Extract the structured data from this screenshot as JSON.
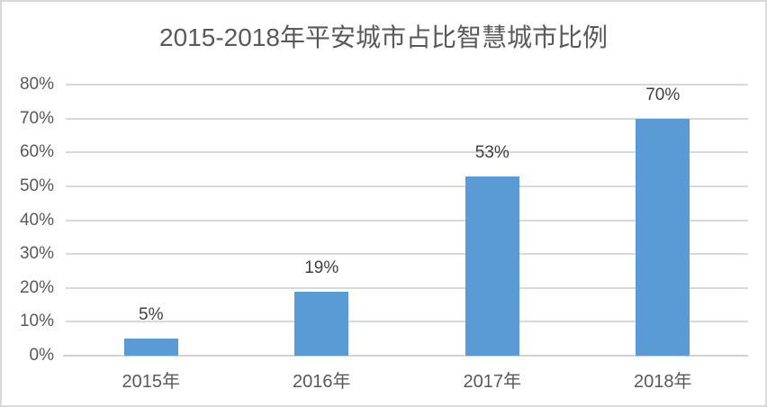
{
  "chart_data": {
    "type": "bar",
    "title": "2015-2018年平安城市占比智慧城市比例",
    "categories": [
      "2015年",
      "2016年",
      "2017年",
      "2018年"
    ],
    "values": [
      5,
      19,
      53,
      70
    ],
    "value_labels": [
      "5%",
      "19%",
      "53%",
      "70%"
    ],
    "xlabel": "",
    "ylabel": "",
    "ylim": [
      0,
      80
    ],
    "y_ticks": [
      0,
      10,
      20,
      30,
      40,
      50,
      60,
      70,
      80
    ],
    "y_tick_labels": [
      "0%",
      "10%",
      "20%",
      "30%",
      "40%",
      "50%",
      "60%",
      "70%",
      "80%"
    ],
    "grid": true,
    "legend_position": "none",
    "colors": {
      "bar": "#5b9bd5",
      "gridline": "#d9d9d9",
      "axis_line": "#d2d2d2",
      "title": "#595959",
      "tick_label": "#595959",
      "data_label": "#404040",
      "background": "#ffffff",
      "frame_border": "#d9d9d9"
    }
  }
}
